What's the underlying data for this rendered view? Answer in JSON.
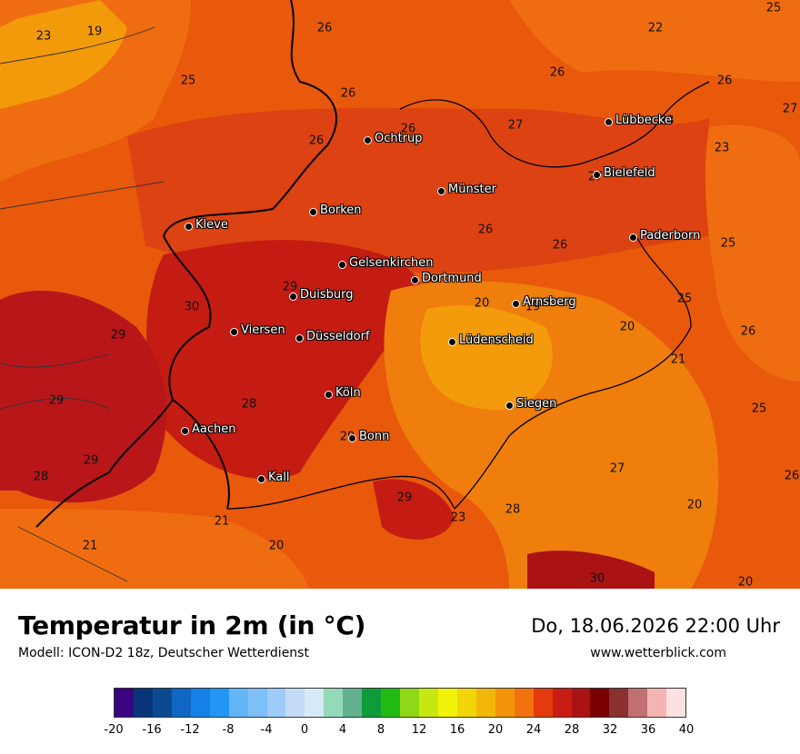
{
  "title": "Temperatur in 2m (in °C)",
  "subtitle": "Modell: ICON-D2 18z, Deutscher Wetterdienst",
  "datetime": "Do, 18.06.2026 22:00 Uhr",
  "website": "www.wetterblick.com",
  "cities": [
    {
      "name": "Ochtrup"
    },
    {
      "name": "Lübbecke"
    },
    {
      "name": "Bielefeld"
    },
    {
      "name": "Münster"
    },
    {
      "name": "Borken"
    },
    {
      "name": "Kleve"
    },
    {
      "name": "Paderborn"
    },
    {
      "name": "Gelsenkirchen"
    },
    {
      "name": "Dortmund"
    },
    {
      "name": "Duisburg"
    },
    {
      "name": "Arnsberg"
    },
    {
      "name": "Viersen"
    },
    {
      "name": "Düsseldorf"
    },
    {
      "name": "Lüdenscheid"
    },
    {
      "name": "Köln"
    },
    {
      "name": "Siegen"
    },
    {
      "name": "Aachen"
    },
    {
      "name": "Bonn"
    },
    {
      "name": "Kall"
    }
  ],
  "temperature_labels": [
    "25",
    "23",
    "19",
    "26",
    "22",
    "25",
    "26",
    "26",
    "26",
    "28",
    "26",
    "27",
    "23",
    "26",
    "27",
    "27",
    "26",
    "26",
    "25",
    "29",
    "30",
    "20",
    "19",
    "29",
    "20",
    "25",
    "26",
    "21",
    "29",
    "28",
    "25",
    "29",
    "29",
    "28",
    "27",
    "26",
    "21",
    "29",
    "23",
    "28",
    "20",
    "21",
    "20",
    "30",
    "20"
  ],
  "scale": {
    "colors": [
      "#3b0480",
      "#08357a",
      "#0b4a91",
      "#1066c2",
      "#1580e6",
      "#2196f3",
      "#64b5f6",
      "#7dbff7",
      "#9ecbf8",
      "#c2dcf8",
      "#d7e8f7",
      "#94d9b8",
      "#63b08e",
      "#0e9c3a",
      "#22bb16",
      "#8fd815",
      "#c6e810",
      "#f2f20a",
      "#f2d60a",
      "#f2b70a",
      "#f2940a",
      "#f2730e",
      "#e33b0c",
      "#c81d12",
      "#aa1214",
      "#7a0000",
      "#8a3030",
      "#c07070",
      "#f5b4b4",
      "#fde0e0"
    ],
    "ticks": [
      "-20",
      "-16",
      "-12",
      "-8",
      "-4",
      "0",
      "4",
      "8",
      "12",
      "16",
      "20",
      "24",
      "28",
      "32",
      "36",
      "40"
    ]
  }
}
